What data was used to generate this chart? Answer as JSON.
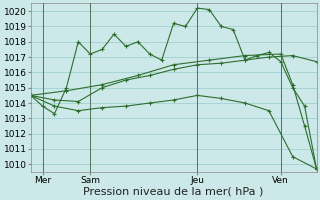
{
  "background_color": "#cce8e8",
  "grid_color": "#99cccc",
  "line_color": "#2d6e2d",
  "xlim": [
    0,
    48
  ],
  "ylim": [
    1009.5,
    1020.5
  ],
  "yticks": [
    1010,
    1011,
    1012,
    1013,
    1014,
    1015,
    1016,
    1017,
    1018,
    1019,
    1020
  ],
  "xlabel": "Pression niveau de la mer( hPa )",
  "xlabel_fontsize": 8,
  "tick_fontsize": 6.5,
  "day_labels": [
    "Mer",
    "Sam",
    "Jeu",
    "Ven"
  ],
  "day_positions": [
    2,
    10,
    28,
    42
  ],
  "vline_positions": [
    2,
    10,
    28,
    42
  ],
  "series1_x": [
    0,
    2,
    4,
    6,
    8,
    10,
    12,
    14,
    16,
    18,
    20,
    22,
    24,
    26,
    28,
    30,
    32,
    34,
    36,
    38,
    40,
    42,
    44,
    46,
    48
  ],
  "series1_y": [
    1014.5,
    1013.8,
    1013.3,
    1015.0,
    1018.0,
    1017.2,
    1017.5,
    1018.5,
    1017.7,
    1018.0,
    1017.2,
    1016.8,
    1019.2,
    1019.0,
    1020.2,
    1020.1,
    1019.0,
    1018.8,
    1016.8,
    1017.1,
    1017.3,
    1016.7,
    1015.0,
    1013.8,
    1009.7
  ],
  "series2_x": [
    0,
    4,
    8,
    12,
    16,
    20,
    24,
    28,
    32,
    36,
    40,
    44,
    48
  ],
  "series2_y": [
    1014.5,
    1014.2,
    1014.1,
    1015.0,
    1015.5,
    1015.8,
    1016.2,
    1016.5,
    1016.6,
    1016.8,
    1017.0,
    1017.1,
    1016.7
  ],
  "series3_x": [
    0,
    4,
    8,
    12,
    16,
    20,
    24,
    28,
    32,
    36,
    40,
    44,
    48
  ],
  "series3_y": [
    1014.5,
    1013.8,
    1013.5,
    1013.7,
    1013.8,
    1014.0,
    1014.2,
    1014.5,
    1014.3,
    1014.0,
    1013.5,
    1010.5,
    1009.7
  ],
  "series4_x": [
    0,
    6,
    12,
    18,
    24,
    30,
    36,
    42,
    44,
    46,
    48
  ],
  "series4_y": [
    1014.5,
    1014.8,
    1015.2,
    1015.8,
    1016.5,
    1016.8,
    1017.1,
    1017.2,
    1015.2,
    1012.5,
    1009.7
  ]
}
